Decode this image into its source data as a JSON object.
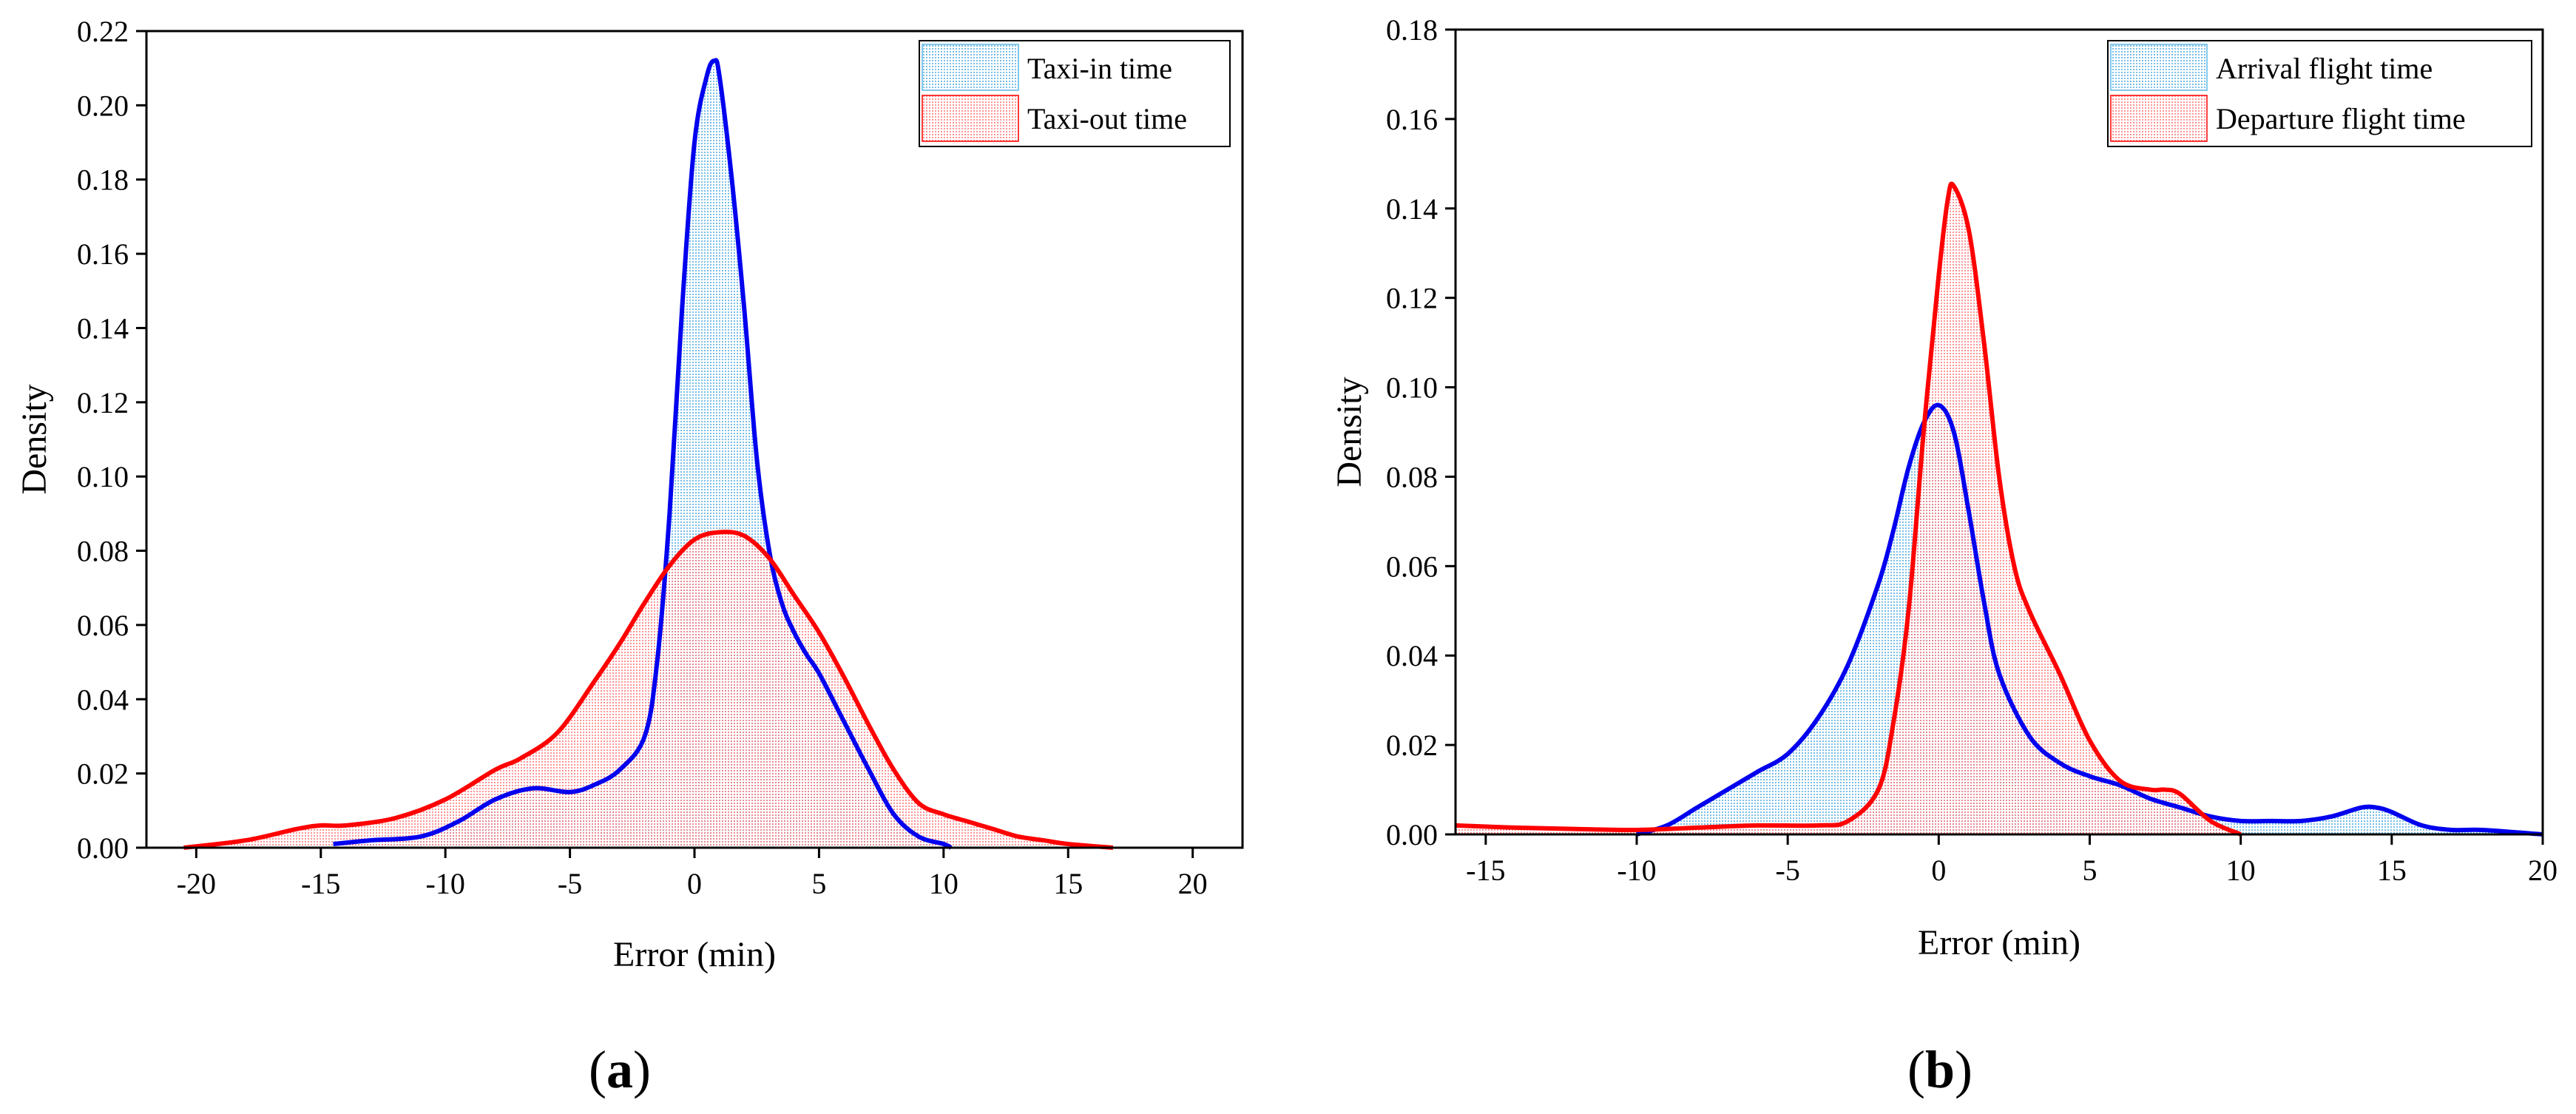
{
  "chart_data": [
    {
      "type": "area",
      "panel": "(a)",
      "panel_letter": "a",
      "xlabel": "Error (min)",
      "ylabel": "Density",
      "xlim": [
        -22,
        22
      ],
      "ylim": [
        0,
        0.22
      ],
      "xticks": [
        -20,
        -15,
        -10,
        -5,
        0,
        5,
        10,
        15,
        20
      ],
      "xtick_labels": [
        "-20",
        "-15",
        "-10",
        "-5",
        "0",
        "5",
        "10",
        "15",
        "20"
      ],
      "yticks": [
        0,
        0.02,
        0.04,
        0.06,
        0.08,
        0.1,
        0.12,
        0.14,
        0.16,
        0.18,
        0.2,
        0.22
      ],
      "ytick_labels": [
        "0.00",
        "0.02",
        "0.04",
        "0.06",
        "0.08",
        "0.10",
        "0.12",
        "0.14",
        "0.16",
        "0.18",
        "0.20",
        "0.22"
      ],
      "legend_position": "top-right",
      "series": [
        {
          "name": "Taxi-in time",
          "color": "#0000ee",
          "fill": "#5fb8e8",
          "x": [
            -14.5,
            -13,
            -11,
            -9.5,
            -8,
            -6.5,
            -5,
            -4,
            -3,
            -2,
            -1.5,
            -1,
            -0.5,
            0,
            0.5,
            0.8,
            1,
            1.5,
            2,
            2.5,
            3,
            3.5,
            4,
            4.5,
            5,
            6,
            7,
            8,
            9,
            10,
            10.3
          ],
          "y": [
            0.001,
            0.002,
            0.003,
            0.007,
            0.013,
            0.016,
            0.015,
            0.017,
            0.021,
            0.03,
            0.05,
            0.09,
            0.145,
            0.19,
            0.208,
            0.212,
            0.208,
            0.18,
            0.145,
            0.105,
            0.08,
            0.066,
            0.058,
            0.052,
            0.047,
            0.034,
            0.021,
            0.009,
            0.003,
            0.001,
            0.0
          ]
        },
        {
          "name": "Taxi-out time",
          "color": "#ff0000",
          "fill": "#ff8a8a",
          "x": [
            -20.5,
            -18,
            -16,
            -15,
            -14,
            -12,
            -10,
            -8,
            -7,
            -5.5,
            -4,
            -3,
            -2,
            -1,
            0,
            1,
            2,
            3,
            4,
            5,
            6,
            7,
            8,
            9,
            10,
            11,
            12,
            13,
            14,
            15,
            16.8
          ],
          "y": [
            0.0,
            0.002,
            0.005,
            0.006,
            0.006,
            0.008,
            0.013,
            0.021,
            0.024,
            0.031,
            0.045,
            0.055,
            0.066,
            0.076,
            0.083,
            0.085,
            0.084,
            0.078,
            0.068,
            0.058,
            0.046,
            0.033,
            0.021,
            0.012,
            0.009,
            0.007,
            0.005,
            0.003,
            0.002,
            0.001,
            0.0
          ]
        }
      ]
    },
    {
      "type": "area",
      "panel": "(b)",
      "panel_letter": "b",
      "xlabel": "Error (min)",
      "ylabel": "Density",
      "xlim": [
        -16,
        20
      ],
      "ylim": [
        0,
        0.18
      ],
      "xticks": [
        -15,
        -10,
        -5,
        0,
        5,
        10,
        15,
        20
      ],
      "xtick_labels": [
        "-15",
        "-10",
        "-5",
        "0",
        "5",
        "10",
        "15",
        "20"
      ],
      "yticks": [
        0,
        0.02,
        0.04,
        0.06,
        0.08,
        0.1,
        0.12,
        0.14,
        0.16,
        0.18
      ],
      "ytick_labels": [
        "0.00",
        "0.02",
        "0.04",
        "0.06",
        "0.08",
        "0.10",
        "0.12",
        "0.14",
        "0.16",
        "0.18"
      ],
      "legend_position": "top-right",
      "series": [
        {
          "name": "Arrival flight time",
          "color": "#0000ee",
          "fill": "#5fb8e8",
          "x": [
            -10,
            -9,
            -8,
            -7,
            -6,
            -5,
            -4,
            -3,
            -2,
            -1.5,
            -1,
            -0.5,
            0,
            0.5,
            1,
            1.5,
            2,
            3,
            4,
            5,
            6,
            7,
            8,
            9,
            10,
            11,
            12,
            13,
            14,
            14.5,
            15,
            16,
            17,
            18,
            20
          ],
          "y": [
            0.0,
            0.002,
            0.006,
            0.01,
            0.014,
            0.018,
            0.026,
            0.038,
            0.056,
            0.068,
            0.082,
            0.092,
            0.096,
            0.09,
            0.072,
            0.052,
            0.036,
            0.022,
            0.016,
            0.013,
            0.011,
            0.008,
            0.006,
            0.004,
            0.003,
            0.003,
            0.003,
            0.004,
            0.006,
            0.006,
            0.005,
            0.002,
            0.001,
            0.001,
            0.0
          ]
        },
        {
          "name": "Departure flight time",
          "color": "#ff0000",
          "fill": "#ff8a8a",
          "x": [
            -16,
            -14,
            -12,
            -10,
            -8,
            -6,
            -4,
            -3,
            -2,
            -1.5,
            -1,
            -0.5,
            0,
            0.3,
            0.5,
            1,
            1.5,
            2,
            2.5,
            3,
            4,
            5,
            6,
            7,
            7.5,
            8,
            9,
            10
          ],
          "y": [
            0.002,
            0.0015,
            0.0012,
            0.001,
            0.0015,
            0.002,
            0.002,
            0.003,
            0.01,
            0.025,
            0.05,
            0.09,
            0.125,
            0.142,
            0.145,
            0.135,
            0.11,
            0.08,
            0.06,
            0.05,
            0.036,
            0.021,
            0.012,
            0.01,
            0.01,
            0.009,
            0.003,
            0.0
          ]
        }
      ]
    }
  ]
}
